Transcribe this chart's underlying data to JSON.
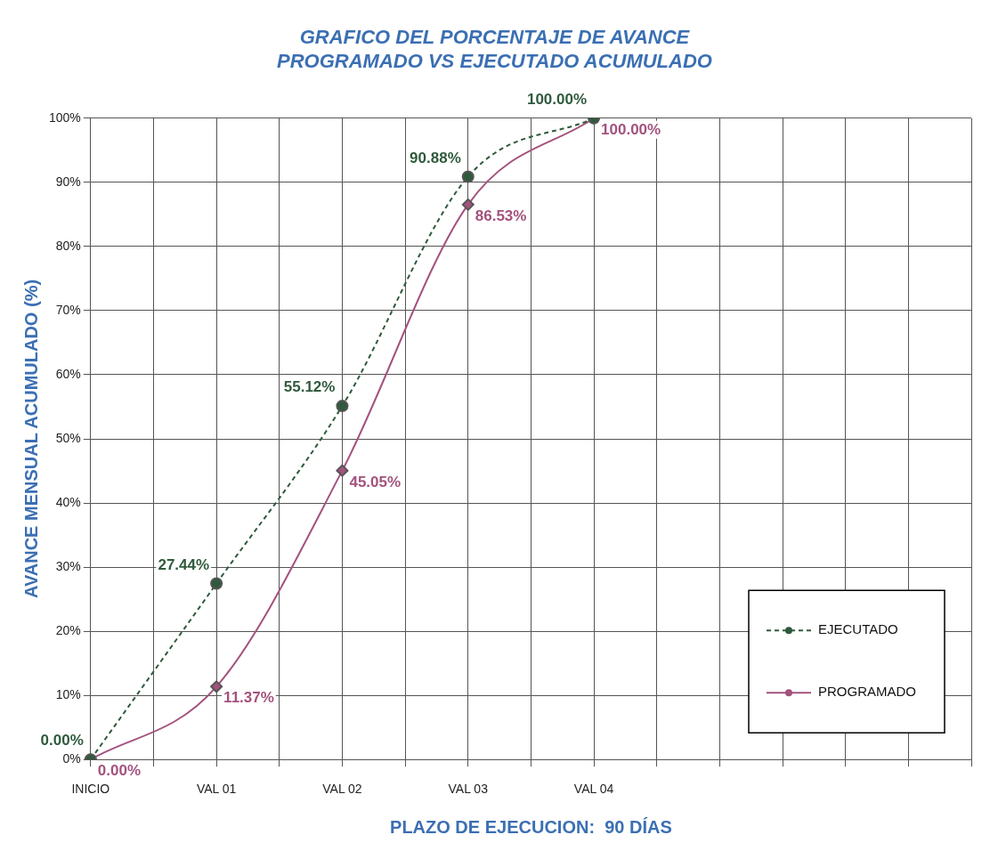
{
  "chart_data": {
    "type": "line",
    "title": [
      "GRAFICO DEL PORCENTAJE DE AVANCE",
      "PROGRAMADO VS EJECUTADO ACUMULADO"
    ],
    "xlabel": "PLAZO DE EJECUCION:  90 DÍAS",
    "ylabel": "AVANCE MENSUAL ACUMULADO (%)",
    "categories": [
      "INICIO",
      null,
      "VAL 01",
      null,
      "VAL 02",
      null,
      "VAL 03",
      null,
      "VAL 04",
      null,
      null,
      null,
      null,
      null,
      null
    ],
    "series": [
      {
        "name": "EJECUTADO",
        "color": "#2f5a3c",
        "line_style": "dashed",
        "marker": "circle",
        "values": [
          0,
          null,
          27.44,
          null,
          55.12,
          null,
          90.88,
          null,
          100,
          null,
          null,
          null,
          null,
          null,
          null
        ],
        "value_labels": [
          "0.00%",
          null,
          "27.44%",
          null,
          "55.12%",
          null,
          "90.88%",
          null,
          "100.00%",
          null,
          null,
          null,
          null,
          null,
          null
        ]
      },
      {
        "name": "PROGRAMADO",
        "color": "#a3527e",
        "line_style": "solid",
        "marker": "diamond",
        "values": [
          0,
          null,
          11.37,
          null,
          45.05,
          null,
          86.53,
          null,
          100,
          null,
          null,
          null,
          null,
          null,
          null
        ],
        "value_labels": [
          "0.00%",
          null,
          "11.37%",
          null,
          "45.05%",
          null,
          "86.53%",
          null,
          "100.00%",
          null,
          null,
          null,
          null,
          null,
          null
        ]
      }
    ],
    "ylim": [
      0,
      100
    ],
    "yticks": [
      {
        "value": 0,
        "label": "0%"
      },
      {
        "value": 10,
        "label": "10%"
      },
      {
        "value": 20,
        "label": "20%"
      },
      {
        "value": 30,
        "label": "30%"
      },
      {
        "value": 40,
        "label": "40%"
      },
      {
        "value": 50,
        "label": "50%"
      },
      {
        "value": 60,
        "label": "60%"
      },
      {
        "value": 70,
        "label": "70%"
      },
      {
        "value": 80,
        "label": "80%"
      },
      {
        "value": 90,
        "label": "90%"
      },
      {
        "value": 100,
        "label": "100%"
      }
    ],
    "grid": true,
    "legend": "bottom right"
  }
}
